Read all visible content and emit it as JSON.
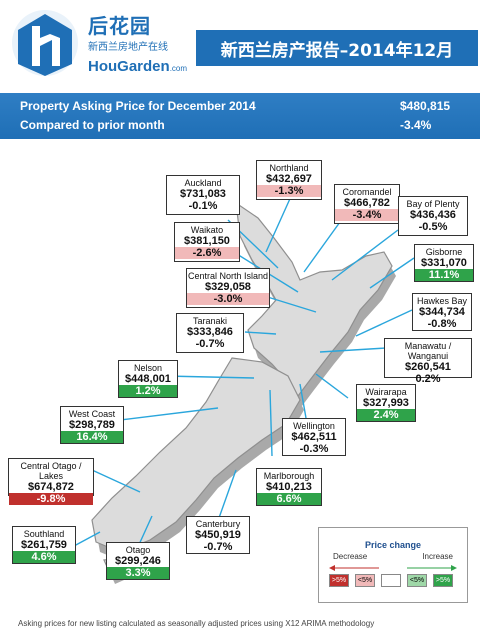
{
  "brand": {
    "name_cn": "后花园",
    "subtitle_cn": "新西兰房地产在线",
    "name_en": "HouGarden",
    "domain_suffix": ".com"
  },
  "report_title": "新西兰房产报告–2014年12月",
  "summary": {
    "row1_label": "Property Asking Price for  December 2014",
    "row1_value": "$480,815",
    "row2_label": "Compared to prior month",
    "row2_value": "-3.4%"
  },
  "regions": [
    {
      "name": "Auckland",
      "price": "$731,083",
      "change": "-0.1%",
      "class": "flat"
    },
    {
      "name": "Northland",
      "price": "$432,697",
      "change": "-1.3%",
      "class": "neg"
    },
    {
      "name": "Coromandel",
      "price": "$466,782",
      "change": "-3.4%",
      "class": "neg"
    },
    {
      "name": "Bay of Plenty",
      "price": "$436,436",
      "change": "-0.5%",
      "class": "flat"
    },
    {
      "name": "Waikato",
      "price": "$381,150",
      "change": "-2.6%",
      "class": "neg"
    },
    {
      "name": "Gisborne",
      "price": "$331,070",
      "change": "11.1%",
      "class": "pos"
    },
    {
      "name": "Central North Island",
      "price": "$329,058",
      "change": "-3.0%",
      "class": "neg"
    },
    {
      "name": "Hawkes Bay",
      "price": "$344,734",
      "change": "-0.8%",
      "class": "flat"
    },
    {
      "name": "Taranaki",
      "price": "$333,846",
      "change": "-0.7%",
      "class": "flat"
    },
    {
      "name": "Manawatu / Wanganui",
      "price": "$260,541",
      "change": "0.2%",
      "class": "flat"
    },
    {
      "name": "Nelson",
      "price": "$448,001",
      "change": "1.2%",
      "class": "pos"
    },
    {
      "name": "Wairarapa",
      "price": "$327,993",
      "change": "2.4%",
      "class": "pos"
    },
    {
      "name": "West Coast",
      "price": "$298,789",
      "change": "16.4%",
      "class": "pos"
    },
    {
      "name": "Wellington",
      "price": "$462,511",
      "change": "-0.3%",
      "class": "flat"
    },
    {
      "name": "Central Otago / Lakes",
      "price": "$674,872",
      "change": "-9.8%",
      "class": "strongneg"
    },
    {
      "name": "Marlborough",
      "price": "$410,213",
      "change": "6.6%",
      "class": "pos"
    },
    {
      "name": "Canterbury",
      "price": "$450,919",
      "change": "-0.7%",
      "class": "flat"
    },
    {
      "name": "Southland",
      "price": "$261,759",
      "change": "4.6%",
      "class": "pos"
    },
    {
      "name": "Otago",
      "price": "$299,246",
      "change": "3.3%",
      "class": "pos"
    }
  ],
  "legend": {
    "title": "Price change",
    "decrease": "Decrease",
    "increase": "Increase",
    "swatches": [
      ">5%",
      "<5%",
      "",
      "<5%",
      ">5%"
    ],
    "swatch_colors": [
      "#c0302d",
      "#f1b9b9",
      "#ffffff",
      "#9fd8a8",
      "#2fa34a"
    ]
  },
  "footnote": "Asking prices for new listing calculated as seasonally adjusted prices using X12 ARIMA methodology"
}
